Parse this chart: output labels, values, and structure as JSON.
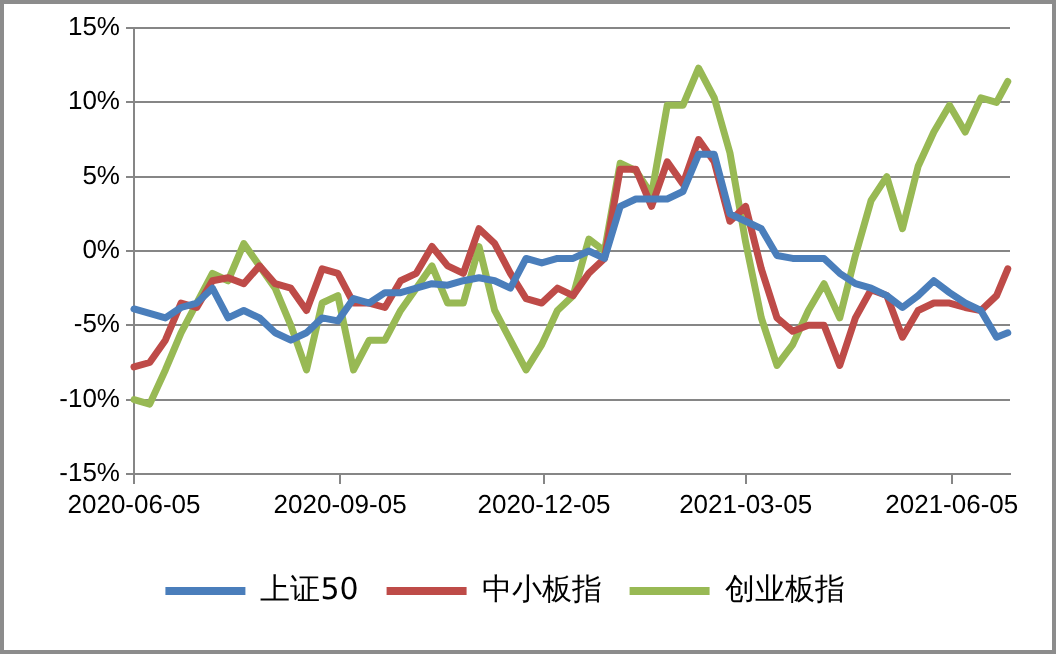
{
  "chart_data": {
    "type": "line",
    "x": [
      "2020-06-05",
      "2020-06-12",
      "2020-06-19",
      "2020-06-26",
      "2020-07-03",
      "2020-07-10",
      "2020-07-17",
      "2020-07-24",
      "2020-07-31",
      "2020-08-07",
      "2020-08-14",
      "2020-08-21",
      "2020-08-28",
      "2020-09-04",
      "2020-09-11",
      "2020-09-18",
      "2020-09-25",
      "2020-10-02",
      "2020-10-09",
      "2020-10-16",
      "2020-10-23",
      "2020-10-30",
      "2020-11-06",
      "2020-11-13",
      "2020-11-20",
      "2020-11-27",
      "2020-12-04",
      "2020-12-11",
      "2020-12-18",
      "2020-12-25",
      "2021-01-01",
      "2021-01-08",
      "2021-01-15",
      "2021-01-22",
      "2021-01-29",
      "2021-02-05",
      "2021-02-12",
      "2021-02-19",
      "2021-02-26",
      "2021-03-05",
      "2021-03-12",
      "2021-03-19",
      "2021-03-26",
      "2021-04-02",
      "2021-04-09",
      "2021-04-16",
      "2021-04-23",
      "2021-04-30",
      "2021-05-07",
      "2021-05-14",
      "2021-05-21",
      "2021-05-28",
      "2021-06-04",
      "2021-06-11",
      "2021-06-18",
      "2021-06-25",
      "2021-06-30"
    ],
    "series": [
      {
        "name": "上证50",
        "color": "#4a7ebb",
        "values": [
          -3.9,
          -4.2,
          -4.5,
          -3.8,
          -3.5,
          -2.5,
          -4.5,
          -4,
          -4.5,
          -5.5,
          -6,
          -5.5,
          -4.5,
          -4.7,
          -3.2,
          -3.5,
          -2.8,
          -2.8,
          -2.5,
          -2.2,
          -2.3,
          -2,
          -1.8,
          -2,
          -2.5,
          -0.5,
          -0.8,
          -0.5,
          -0.5,
          0,
          -0.5,
          3,
          3.5,
          3.5,
          3.5,
          4,
          6.5,
          6.5,
          2.5,
          2,
          1.5,
          -0.3,
          -0.5,
          -0.5,
          -0.5,
          -1.5,
          -2.2,
          -2.5,
          -3,
          -3.8,
          -3,
          -2,
          -2.8,
          -3.5,
          -4,
          -5.8,
          -5.5
        ]
      },
      {
        "name": "中小板指",
        "color": "#be4b48",
        "values": [
          -7.8,
          -7.5,
          -6,
          -3.5,
          -3.8,
          -2,
          -1.8,
          -2.2,
          -1,
          -2.2,
          -2.5,
          -4,
          -1.2,
          -1.5,
          -3.5,
          -3.5,
          -3.8,
          -2,
          -1.5,
          0.3,
          -1,
          -1.5,
          1.5,
          0.5,
          -1.5,
          -3.2,
          -3.5,
          -2.5,
          -3,
          -1.5,
          -0.5,
          5.5,
          5.5,
          3,
          6,
          4.5,
          7.5,
          6,
          2,
          3,
          -1.2,
          -4.5,
          -5.4,
          -5,
          -5,
          -7.7,
          -4.5,
          -2.6,
          -3,
          -5.8,
          -4,
          -3.5,
          -3.5,
          -3.8,
          -4,
          -3,
          -1.2
        ]
      },
      {
        "name": "创业板指",
        "color": "#98b954",
        "values": [
          -10,
          -10.3,
          -8,
          -5.5,
          -3.5,
          -1.5,
          -2,
          0.5,
          -1,
          -2.5,
          -5,
          -8,
          -3.5,
          -3,
          -8,
          -6,
          -6,
          -4,
          -2.5,
          -1,
          -3.5,
          -3.5,
          0.3,
          -4,
          -6,
          -8,
          -6.3,
          -4,
          -3,
          0.8,
          0,
          5.9,
          5.4,
          3.8,
          9.8,
          9.8,
          12.3,
          10.3,
          6.6,
          0.6,
          -4.5,
          -7.7,
          -6.3,
          -4,
          -2.2,
          -4.5,
          -0.3,
          3.4,
          5,
          1.5,
          5.7,
          8,
          9.8,
          8,
          10.3,
          10,
          11.4
        ]
      }
    ],
    "xlim": [
      "2020-06-05",
      "2021-07-01"
    ],
    "xticks": [
      "2020-06-05",
      "2020-09-05",
      "2020-12-05",
      "2021-03-05",
      "2021-06-05"
    ],
    "ylim": [
      -15,
      15
    ],
    "yticks": [
      {
        "value": -15,
        "label": "-15%"
      },
      {
        "value": -10,
        "label": "-10%"
      },
      {
        "value": -5,
        "label": "-5%"
      },
      {
        "value": 0,
        "label": "0%"
      },
      {
        "value": 5,
        "label": "5%"
      },
      {
        "value": 10,
        "label": "10%"
      },
      {
        "value": 15,
        "label": "15%"
      }
    ],
    "grid": "y",
    "legend": "bottom",
    "marker": "none",
    "line_style": "solid"
  }
}
